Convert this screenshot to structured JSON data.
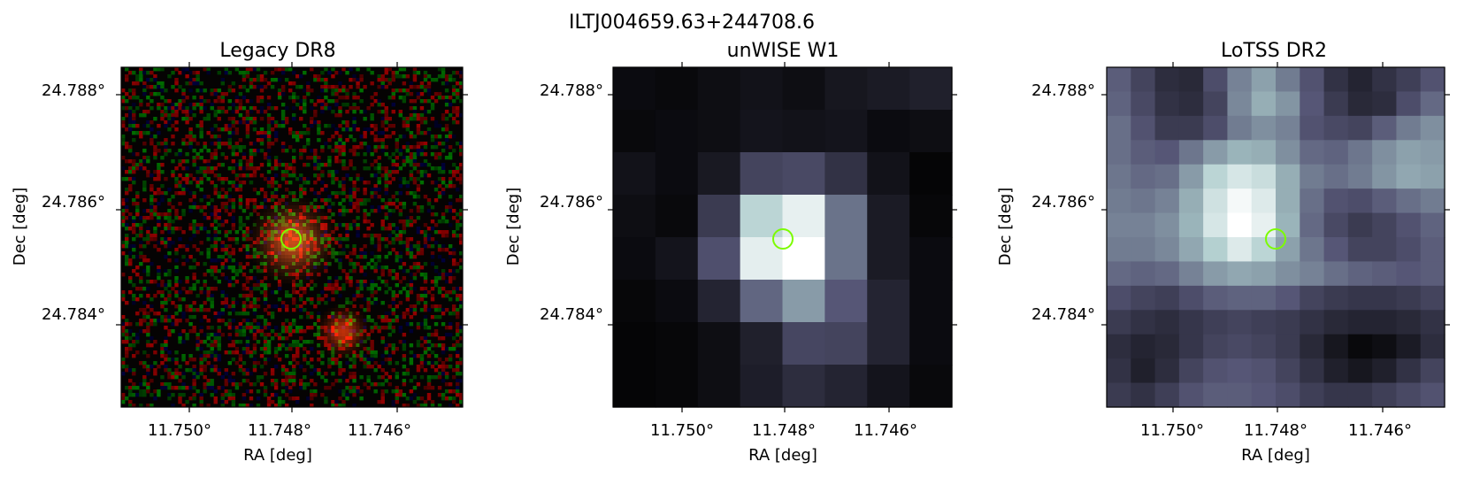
{
  "figure": {
    "title": "ILTJ004659.63+244708.6"
  },
  "panels": [
    {
      "id": "legacy",
      "title": "Legacy DR8",
      "kind": "noise_rgb",
      "xlabel": "RA [deg]",
      "ylabel": "Dec [deg]",
      "xticks": [
        "11.750°",
        "11.748°",
        "11.746°"
      ],
      "yticks": [
        "24.788°",
        "24.786°",
        "24.784°"
      ]
    },
    {
      "id": "unwise",
      "title": "unWISE W1",
      "kind": "grid",
      "xlabel": "RA [deg]",
      "ylabel": "Dec [deg]",
      "xticks": [
        "11.750°",
        "11.748°",
        "11.746°"
      ],
      "yticks": [
        "24.788°",
        "24.786°",
        "24.784°"
      ],
      "colormap": "bone",
      "grid": [
        [
          0.05,
          0.04,
          0.06,
          0.08,
          0.06,
          0.1,
          0.12,
          0.14
        ],
        [
          0.04,
          0.05,
          0.06,
          0.09,
          0.08,
          0.09,
          0.05,
          0.06
        ],
        [
          0.08,
          0.05,
          0.11,
          0.3,
          0.32,
          0.22,
          0.08,
          0.02
        ],
        [
          0.06,
          0.04,
          0.26,
          0.8,
          0.93,
          0.47,
          0.12,
          0.03
        ],
        [
          0.05,
          0.09,
          0.35,
          0.92,
          1.0,
          0.47,
          0.12,
          0.05
        ],
        [
          0.03,
          0.05,
          0.16,
          0.43,
          0.6,
          0.38,
          0.16,
          0.05
        ],
        [
          0.02,
          0.03,
          0.06,
          0.14,
          0.31,
          0.3,
          0.16,
          0.05
        ],
        [
          0.02,
          0.03,
          0.06,
          0.13,
          0.2,
          0.16,
          0.09,
          0.04
        ]
      ]
    },
    {
      "id": "lotss",
      "title": "LoTSS DR2",
      "kind": "grid",
      "xlabel": "RA [deg]",
      "ylabel": "Dec [deg]",
      "xticks": [
        "11.750°",
        "11.748°",
        "11.746°"
      ],
      "yticks": [
        "24.788°",
        "24.786°",
        "24.784°"
      ],
      "colormap": "bone",
      "grid": [
        [
          0.4,
          0.3,
          0.2,
          0.18,
          0.34,
          0.52,
          0.62,
          0.5,
          0.36,
          0.22,
          0.16,
          0.22,
          0.28,
          0.36
        ],
        [
          0.42,
          0.32,
          0.22,
          0.2,
          0.3,
          0.54,
          0.66,
          0.58,
          0.38,
          0.26,
          0.18,
          0.2,
          0.34,
          0.44
        ],
        [
          0.46,
          0.36,
          0.26,
          0.26,
          0.34,
          0.5,
          0.56,
          0.52,
          0.36,
          0.32,
          0.3,
          0.4,
          0.5,
          0.56
        ],
        [
          0.46,
          0.4,
          0.38,
          0.48,
          0.6,
          0.68,
          0.66,
          0.56,
          0.44,
          0.42,
          0.48,
          0.56,
          0.62,
          0.6
        ],
        [
          0.48,
          0.44,
          0.46,
          0.6,
          0.8,
          0.88,
          0.84,
          0.66,
          0.5,
          0.46,
          0.5,
          0.58,
          0.64,
          0.62
        ],
        [
          0.5,
          0.48,
          0.52,
          0.66,
          0.86,
          0.97,
          0.9,
          0.66,
          0.46,
          0.36,
          0.34,
          0.4,
          0.46,
          0.5
        ],
        [
          0.52,
          0.52,
          0.56,
          0.68,
          0.88,
          1.0,
          0.93,
          0.68,
          0.44,
          0.32,
          0.26,
          0.3,
          0.36,
          0.42
        ],
        [
          0.5,
          0.5,
          0.54,
          0.64,
          0.78,
          0.9,
          0.8,
          0.62,
          0.48,
          0.38,
          0.3,
          0.3,
          0.34,
          0.4
        ],
        [
          0.44,
          0.42,
          0.44,
          0.52,
          0.6,
          0.64,
          0.62,
          0.56,
          0.52,
          0.46,
          0.42,
          0.4,
          0.38,
          0.4
        ],
        [
          0.34,
          0.3,
          0.28,
          0.34,
          0.4,
          0.42,
          0.42,
          0.38,
          0.3,
          0.26,
          0.24,
          0.24,
          0.26,
          0.3
        ],
        [
          0.26,
          0.22,
          0.2,
          0.24,
          0.28,
          0.3,
          0.28,
          0.26,
          0.22,
          0.18,
          0.16,
          0.16,
          0.18,
          0.22
        ],
        [
          0.2,
          0.16,
          0.18,
          0.24,
          0.3,
          0.32,
          0.3,
          0.26,
          0.18,
          0.1,
          0.04,
          0.06,
          0.12,
          0.2
        ],
        [
          0.22,
          0.14,
          0.2,
          0.3,
          0.36,
          0.38,
          0.36,
          0.3,
          0.22,
          0.14,
          0.1,
          0.14,
          0.22,
          0.3
        ],
        [
          0.26,
          0.22,
          0.28,
          0.36,
          0.4,
          0.4,
          0.38,
          0.34,
          0.28,
          0.24,
          0.24,
          0.28,
          0.32,
          0.36
        ]
      ]
    }
  ],
  "marker": {
    "color": "#7cfc00"
  }
}
